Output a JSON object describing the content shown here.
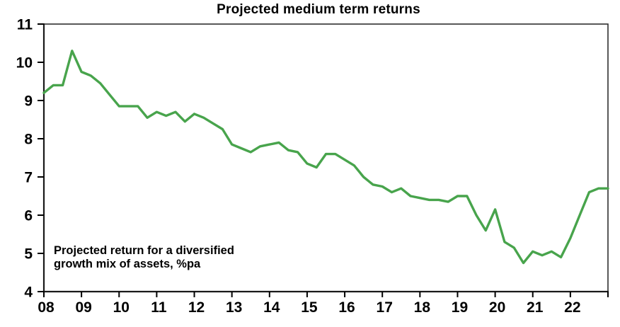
{
  "header": {
    "title": "Projected medium term returns"
  },
  "annotation": {
    "line1": "Projected return for a diversified",
    "line2": "growth mix of assets, %pa"
  },
  "chart_data": {
    "type": "line",
    "title": "Projected medium term returns",
    "xlabel": "",
    "ylabel": "",
    "grid": false,
    "legend_position": "none",
    "xlim": [
      2008,
      2023
    ],
    "ylim": [
      4,
      11
    ],
    "y_ticks": [
      4,
      5,
      6,
      7,
      8,
      9,
      10,
      11
    ],
    "x_ticks": [
      {
        "year": 2008,
        "label": "08"
      },
      {
        "year": 2009,
        "label": "09"
      },
      {
        "year": 2010,
        "label": "10"
      },
      {
        "year": 2011,
        "label": "11"
      },
      {
        "year": 2012,
        "label": "12"
      },
      {
        "year": 2013,
        "label": "13"
      },
      {
        "year": 2014,
        "label": "14"
      },
      {
        "year": 2015,
        "label": "15"
      },
      {
        "year": 2016,
        "label": "16"
      },
      {
        "year": 2017,
        "label": "17"
      },
      {
        "year": 2018,
        "label": "18"
      },
      {
        "year": 2019,
        "label": "19"
      },
      {
        "year": 2020,
        "label": "20"
      },
      {
        "year": 2021,
        "label": "21"
      },
      {
        "year": 2022,
        "label": "22"
      },
      {
        "year": 2023,
        "label": ""
      }
    ],
    "series": [
      {
        "name": "Projected return for a diversified growth mix of assets, %pa",
        "x": [
          2008.0,
          2008.25,
          2008.5,
          2008.75,
          2009.0,
          2009.25,
          2009.5,
          2009.75,
          2010.0,
          2010.25,
          2010.5,
          2010.75,
          2011.0,
          2011.25,
          2011.5,
          2011.75,
          2012.0,
          2012.25,
          2012.5,
          2012.75,
          2013.0,
          2013.25,
          2013.5,
          2013.75,
          2014.0,
          2014.25,
          2014.5,
          2014.75,
          2015.0,
          2015.25,
          2015.5,
          2015.75,
          2016.0,
          2016.25,
          2016.5,
          2016.75,
          2017.0,
          2017.25,
          2017.5,
          2017.75,
          2018.0,
          2018.25,
          2018.5,
          2018.75,
          2019.0,
          2019.25,
          2019.5,
          2019.75,
          2020.0,
          2020.25,
          2020.5,
          2020.75,
          2021.0,
          2021.25,
          2021.5,
          2021.75,
          2022.0,
          2022.25,
          2022.5,
          2022.75,
          2023.0
        ],
        "values": [
          9.2,
          9.4,
          9.4,
          10.3,
          9.75,
          9.65,
          9.45,
          9.15,
          8.85,
          8.85,
          8.85,
          8.55,
          8.7,
          8.6,
          8.7,
          8.45,
          8.65,
          8.55,
          8.4,
          8.25,
          7.85,
          7.75,
          7.65,
          7.8,
          7.85,
          7.9,
          7.7,
          7.65,
          7.35,
          7.25,
          7.6,
          7.6,
          7.45,
          7.3,
          7.0,
          6.8,
          6.75,
          6.6,
          6.7,
          6.5,
          6.45,
          6.4,
          6.4,
          6.35,
          6.5,
          6.5,
          6.0,
          5.6,
          6.15,
          5.3,
          5.15,
          4.75,
          5.05,
          4.95,
          5.05,
          4.9,
          5.4,
          6.0,
          6.6,
          6.7,
          6.7
        ]
      }
    ],
    "line_color": "#48a44c",
    "frame_color": "#2f2f2f",
    "axis_color": "#1a1a1a",
    "tick_color": "#000000",
    "label_color": "#000000"
  }
}
